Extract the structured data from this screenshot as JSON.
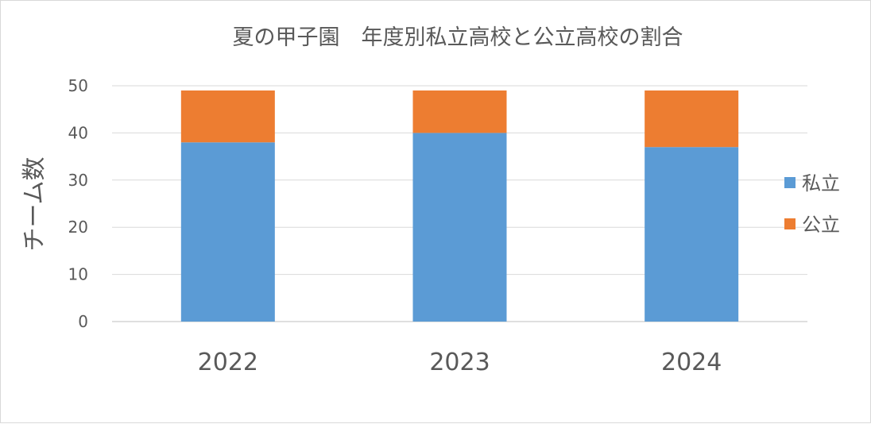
{
  "chart_data": {
    "type": "bar",
    "stacked": true,
    "title": "夏の甲子園　年度別私立高校と公立高校の割合",
    "xlabel": "",
    "ylabel": "チーム数",
    "categories": [
      "2022",
      "2023",
      "2024"
    ],
    "series": [
      {
        "name": "私立",
        "values": [
          38,
          40,
          37
        ],
        "color": "#5b9bd5"
      },
      {
        "name": "公立",
        "values": [
          11,
          9,
          12
        ],
        "color": "#ed7d31"
      }
    ],
    "ylim": [
      0,
      50
    ],
    "yticks": [
      0,
      10,
      20,
      30,
      40,
      50
    ],
    "grid": true,
    "legend_position": "right"
  }
}
